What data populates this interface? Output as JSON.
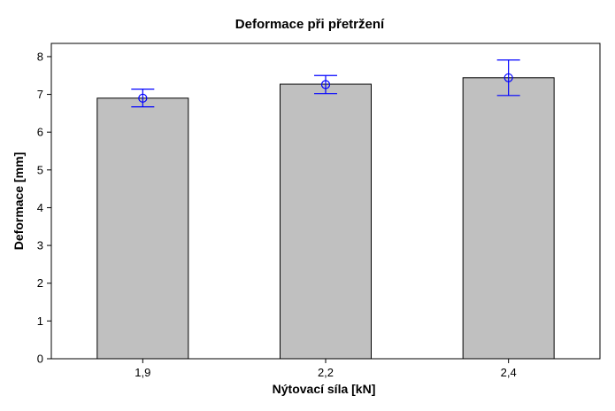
{
  "chart_data": {
    "type": "bar",
    "title": "Deformace při přetržení",
    "xlabel": "Nýtovací síla [kN]",
    "ylabel": "Deformace [mm]",
    "categories": [
      "1,9",
      "2,2",
      "2,4"
    ],
    "series": [
      {
        "name": "Deformace",
        "values": [
          6.9,
          7.27,
          7.44
        ],
        "mean_markers": [
          6.9,
          7.26,
          7.44
        ],
        "error_low": [
          6.67,
          7.02,
          6.97
        ],
        "error_high": [
          7.14,
          7.5,
          7.91
        ]
      }
    ],
    "ylim": [
      0,
      8.35
    ],
    "yticks": [
      0,
      1,
      2,
      3,
      4,
      5,
      6,
      7,
      8
    ],
    "grid": false,
    "legend": "none",
    "colors": {
      "bar_fill": "#c0c0c0",
      "bar_stroke": "#000000",
      "error": "#0000ff",
      "axis": "#000000"
    }
  }
}
